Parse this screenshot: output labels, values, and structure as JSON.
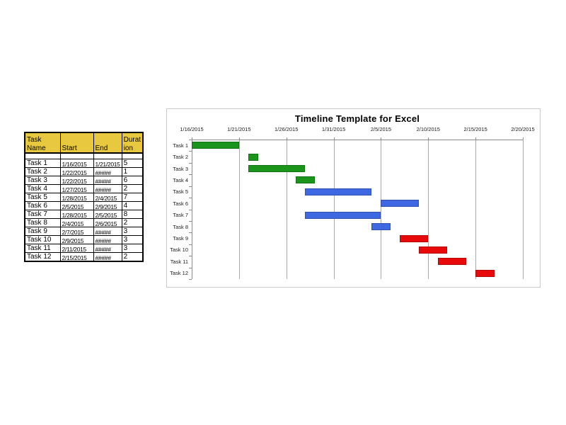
{
  "page": {
    "background": "#FFFFFF"
  },
  "table": {
    "headers": [
      {
        "key": "name",
        "label": "Task Name"
      },
      {
        "key": "start",
        "label": "Start"
      },
      {
        "key": "end",
        "label": "End"
      },
      {
        "key": "duration",
        "label": "Duration"
      }
    ],
    "has_empty_row": true,
    "rows": [
      {
        "name": "Task 1",
        "start": "1/16/2015",
        "end": "1/21/2015",
        "duration": "5"
      },
      {
        "name": "Task 2",
        "start": "1/22/2015",
        "end": "#####",
        "duration": "1"
      },
      {
        "name": "Task 3",
        "start": "1/22/2015",
        "end": "#####",
        "duration": "6"
      },
      {
        "name": "Task 4",
        "start": "1/27/2015",
        "end": "#####",
        "duration": "2"
      },
      {
        "name": "Task 5",
        "start": "1/28/2015",
        "end": "2/4/2015",
        "duration": "7"
      },
      {
        "name": "Task 6",
        "start": "2/5/2015",
        "end": "2/9/2015",
        "duration": "4"
      },
      {
        "name": "Task 7",
        "start": "1/28/2015",
        "end": "2/5/2015",
        "duration": "8"
      },
      {
        "name": "Task 8",
        "start": "2/4/2015",
        "end": "2/6/2015",
        "duration": "2"
      },
      {
        "name": "Task 9",
        "start": "2/7/2015",
        "end": "#####",
        "duration": "3"
      },
      {
        "name": "Task 10",
        "start": "2/9/2015",
        "end": "#####",
        "duration": "3"
      },
      {
        "name": "Task 11",
        "start": "2/11/2015",
        "end": "#####",
        "duration": "3"
      },
      {
        "name": "Task 12",
        "start": "2/15/2015",
        "end": "#####",
        "duration": "2"
      }
    ],
    "colors": {
      "header_bg": "#E8C83E",
      "border": "#000000",
      "text": "#000000"
    }
  },
  "chart_data": {
    "type": "bar",
    "subtype": "gantt",
    "title": "Timeline Template for Excel",
    "x_axis": {
      "tick_labels": [
        "1/16/2015",
        "1/21/2015",
        "1/26/2015",
        "1/31/2015",
        "2/5/2015",
        "2/10/2015",
        "2/15/2015",
        "2/20/2015"
      ],
      "interval_days": 5,
      "total_days": 35
    },
    "categories": [
      "Task 1",
      "Task 2",
      "Task 3",
      "Task 4",
      "Task 5",
      "Task 6",
      "Task 7",
      "Task 8",
      "Task 9",
      "Task 10",
      "Task 11",
      "Task 12"
    ],
    "series": [
      {
        "task": "Task 1",
        "start": "1/16/2015",
        "offset_days": 0,
        "duration_days": 5,
        "color": "#1B941B"
      },
      {
        "task": "Task 2",
        "start": "1/22/2015",
        "offset_days": 6,
        "duration_days": 1,
        "color": "#1B941B"
      },
      {
        "task": "Task 3",
        "start": "1/22/2015",
        "offset_days": 6,
        "duration_days": 6,
        "color": "#1B941B"
      },
      {
        "task": "Task 4",
        "start": "1/27/2015",
        "offset_days": 11,
        "duration_days": 2,
        "color": "#1B941B"
      },
      {
        "task": "Task 5",
        "start": "1/28/2015",
        "offset_days": 12,
        "duration_days": 7,
        "color": "#3D68E2"
      },
      {
        "task": "Task 6",
        "start": "2/5/2015",
        "offset_days": 20,
        "duration_days": 4,
        "color": "#3D68E2"
      },
      {
        "task": "Task 7",
        "start": "1/28/2015",
        "offset_days": 12,
        "duration_days": 8,
        "color": "#3D68E2"
      },
      {
        "task": "Task 8",
        "start": "2/4/2015",
        "offset_days": 19,
        "duration_days": 2,
        "color": "#3D68E2"
      },
      {
        "task": "Task 9",
        "start": "2/7/2015",
        "offset_days": 22,
        "duration_days": 3,
        "color": "#E80A0A"
      },
      {
        "task": "Task 10",
        "start": "2/9/2015",
        "offset_days": 24,
        "duration_days": 3,
        "color": "#E80A0A"
      },
      {
        "task": "Task 11",
        "start": "2/11/2015",
        "offset_days": 26,
        "duration_days": 3,
        "color": "#E80A0A"
      },
      {
        "task": "Task 12",
        "start": "2/15/2015",
        "offset_days": 30,
        "duration_days": 2,
        "color": "#E80A0A"
      }
    ],
    "colors": {
      "green": "#1B941B",
      "blue": "#3D68E2",
      "red": "#E80A0A",
      "gridline": "#A9A9A9",
      "axis": "#8C8C8C",
      "chart_border": "#C9C9C9",
      "title": "#000000",
      "label": "#1A1A1A"
    },
    "grid": true,
    "legend": false
  }
}
